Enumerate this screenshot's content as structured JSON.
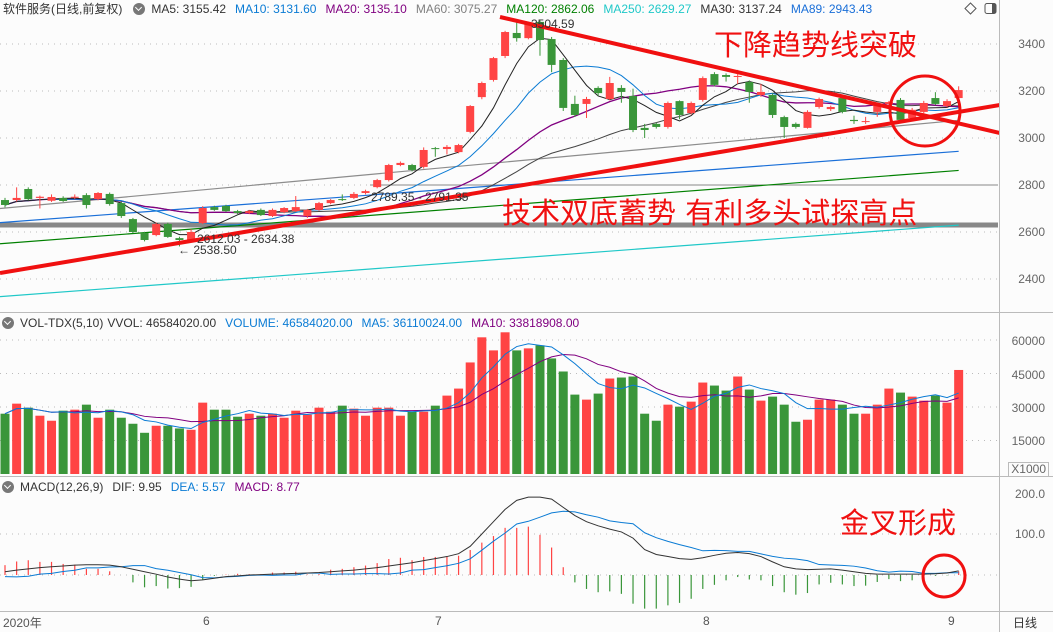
{
  "header": {
    "title": "软件服务(日线,前复权)",
    "ma": [
      {
        "label": "MA5: 3155.42",
        "color": "#333333"
      },
      {
        "label": "MA10: 3131.60",
        "color": "#0a7bd4"
      },
      {
        "label": "MA20: 3135.10",
        "color": "#800080"
      },
      {
        "label": "MA60: 3075.27",
        "color": "#808080"
      },
      {
        "label": "MA120: 2862.06",
        "color": "#008000"
      },
      {
        "label": "MA250: 2629.27",
        "color": "#20c8c8"
      },
      {
        "label": "MA30: 3137.24",
        "color": "#333333"
      },
      {
        "label": "MA89: 2943.43",
        "color": "#1a6fd8"
      }
    ]
  },
  "volume_header": {
    "name": "VOL-TDX(5,10)",
    "vvol": "VVOL: 46584020.00",
    "volume": "VOLUME: 46584020.00",
    "ma5": "MA5: 36110024.00",
    "ma10": "MA10: 33818908.00"
  },
  "macd_header": {
    "name": "MACD(12,26,9)",
    "dif": "DIF: 9.95",
    "dea": "DEA: 5.57",
    "macd": "MACD: 8.77"
  },
  "colors": {
    "up": "#ff4444",
    "down": "#3a963a",
    "annotation": "#f01010"
  },
  "price_axis": [
    "3400",
    "3200",
    "3000",
    "2800",
    "2600",
    "2400"
  ],
  "volume_axis": [
    "60000",
    "45000",
    "30000",
    "15000"
  ],
  "volume_unit": "X1000",
  "macd_axis": [
    "200.0",
    "100.0"
  ],
  "time_axis": {
    "year": "2020年",
    "months": [
      "6",
      "7",
      "8",
      "9"
    ],
    "period": "日线"
  },
  "price_labels": {
    "high": "3504.59",
    "range1": "2789.35 - 2791.35",
    "range2": "2612.03 - 2634.38",
    "low": "← 2538.50"
  },
  "annotations": {
    "breakout": "下降趋势线突破",
    "double_bottom": "技术双底蓄势  有利多头试探高点",
    "golden_cross": "金叉形成"
  },
  "chart_data": {
    "type": "candlestick",
    "price_range": [
      2300,
      3560
    ],
    "candles": [
      [
        2736,
        2745,
        2705,
        2715
      ],
      [
        2736,
        2790,
        2730,
        2745
      ],
      [
        2783,
        2790,
        2735,
        2740
      ],
      [
        2745,
        2755,
        2700,
        2750
      ],
      [
        2733,
        2760,
        2728,
        2749
      ],
      [
        2745,
        2752,
        2728,
        2732
      ],
      [
        2749,
        2760,
        2740,
        2750
      ],
      [
        2757,
        2765,
        2700,
        2715
      ],
      [
        2740,
        2770,
        2735,
        2766
      ],
      [
        2762,
        2768,
        2712,
        2719
      ],
      [
        2723,
        2730,
        2660,
        2668
      ],
      [
        2655,
        2660,
        2595,
        2600
      ],
      [
        2596,
        2600,
        2560,
        2566
      ],
      [
        2587,
        2640,
        2582,
        2634
      ],
      [
        2634,
        2640,
        2575,
        2579
      ],
      [
        2574,
        2580,
        2538.5,
        2566
      ],
      [
        2566,
        2612,
        2560,
        2600
      ],
      [
        2638,
        2710,
        2634,
        2702
      ],
      [
        2706,
        2712,
        2690,
        2694
      ],
      [
        2711,
        2716,
        2685,
        2689
      ],
      [
        2689,
        2694,
        2676,
        2681
      ],
      [
        2681,
        2694,
        2676,
        2689
      ],
      [
        2694,
        2700,
        2668,
        2672
      ],
      [
        2668,
        2700,
        2664,
        2694
      ],
      [
        2685,
        2706,
        2680,
        2702
      ],
      [
        2689,
        2753,
        2685,
        2706
      ],
      [
        2668,
        2698,
        2660,
        2694
      ],
      [
        2694,
        2728,
        2690,
        2723
      ],
      [
        2723,
        2740,
        2718,
        2736
      ],
      [
        2740,
        2760,
        2732,
        2736
      ],
      [
        2745,
        2770,
        2740,
        2762
      ],
      [
        2766,
        2780,
        2760,
        2774
      ],
      [
        2791,
        2826,
        2786,
        2821
      ],
      [
        2821,
        2890,
        2815,
        2885
      ],
      [
        2885,
        2900,
        2880,
        2894
      ],
      [
        2885,
        2890,
        2858,
        2864
      ],
      [
        2877,
        2960,
        2870,
        2949
      ],
      [
        2957,
        2962,
        2920,
        2953
      ],
      [
        2953,
        2970,
        2930,
        2962
      ],
      [
        2940,
        2975,
        2935,
        2970
      ],
      [
        3026,
        3140,
        3020,
        3136
      ],
      [
        3174,
        3240,
        3165,
        3234
      ],
      [
        3247,
        3345,
        3240,
        3340
      ],
      [
        3349,
        3456,
        3340,
        3451
      ],
      [
        3447,
        3504.59,
        3410,
        3425
      ],
      [
        3425,
        3495,
        3420,
        3489
      ],
      [
        3494,
        3500,
        3350,
        3417
      ],
      [
        3421,
        3430,
        3280,
        3311
      ],
      [
        3332,
        3340,
        3115,
        3128
      ],
      [
        3145,
        3180,
        3090,
        3098
      ],
      [
        3145,
        3175,
        3085,
        3166
      ],
      [
        3213,
        3220,
        3180,
        3191
      ],
      [
        3166,
        3260,
        3160,
        3234
      ],
      [
        3213,
        3225,
        3150,
        3196
      ],
      [
        3179,
        3210,
        3025,
        3034
      ],
      [
        3043,
        3060,
        3000,
        3034
      ],
      [
        3060,
        3065,
        3040,
        3047
      ],
      [
        3047,
        3155,
        3040,
        3149
      ],
      [
        3157,
        3160,
        3080,
        3098
      ],
      [
        3106,
        3155,
        3100,
        3149
      ],
      [
        3162,
        3262,
        3155,
        3255
      ],
      [
        3272,
        3280,
        3220,
        3226
      ],
      [
        3268,
        3275,
        3240,
        3260
      ],
      [
        3260,
        3290,
        3230,
        3264
      ],
      [
        3238,
        3245,
        3150,
        3196
      ],
      [
        3183,
        3230,
        3175,
        3196
      ],
      [
        3183,
        3190,
        3085,
        3098
      ],
      [
        3089,
        3095,
        3000,
        3047
      ],
      [
        3060,
        3066,
        3040,
        3047
      ],
      [
        3043,
        3118,
        3040,
        3111
      ],
      [
        3132,
        3172,
        3125,
        3166
      ],
      [
        3123,
        3138,
        3115,
        3132
      ],
      [
        3170,
        3176,
        3105,
        3111
      ],
      [
        3077,
        3095,
        3060,
        3072
      ],
      [
        3068,
        3090,
        3060,
        3072
      ],
      [
        3111,
        3150,
        3090,
        3140
      ],
      [
        3145,
        3158,
        3125,
        3153
      ],
      [
        3162,
        3170,
        3070,
        3077
      ],
      [
        3085,
        3128,
        3080,
        3120
      ],
      [
        3111,
        3158,
        3105,
        3149
      ],
      [
        3170,
        3195,
        3140,
        3145
      ],
      [
        3136,
        3165,
        3130,
        3157
      ],
      [
        3170,
        3220,
        3165,
        3204
      ]
    ],
    "volume": [
      27000,
      31500,
      29700,
      26100,
      23850,
      28350,
      28800,
      31050,
      25200,
      28800,
      25200,
      22500,
      18450,
      21600,
      21600,
      20400,
      19800,
      31950,
      28800,
      28800,
      25650,
      27000,
      26100,
      27000,
      25200,
      28350,
      26550,
      29700,
      27900,
      30600,
      29250,
      26100,
      29700,
      29700,
      26100,
      27900,
      27900,
      30600,
      35100,
      38250,
      49950,
      61200,
      55350,
      63450,
      55350,
      56250,
      57600,
      51750,
      45900,
      35550,
      33300,
      36000,
      42750,
      43200,
      43650,
      27000,
      23850,
      31050,
      30150,
      32400,
      40950,
      39600,
      37350,
      43650,
      37800,
      32850,
      34650,
      31050,
      23400,
      24300,
      33300,
      33300,
      31050,
      27000,
      27000,
      31050,
      38250,
      36450,
      34650,
      32850,
      35100,
      31950,
      46584
    ],
    "macd_hist": [
      24,
      33,
      36,
      32,
      32,
      27,
      25,
      15,
      15,
      9,
      0,
      -18,
      -30,
      -27,
      -33,
      -32,
      -29,
      -11,
      -2,
      1,
      3,
      2,
      2,
      6,
      6,
      8,
      1,
      2,
      13,
      15,
      19,
      23,
      29,
      39,
      42,
      36,
      44,
      44,
      45,
      47,
      61,
      79,
      95,
      115,
      115,
      118,
      98,
      67,
      19,
      -18,
      -34,
      -42,
      -40,
      -46,
      -70,
      -82,
      -82,
      -74,
      -68,
      -58,
      -34,
      -24,
      -13,
      -5,
      -11,
      -13,
      -27,
      -42,
      -48,
      -44,
      -23,
      -19,
      -23,
      -27,
      -26,
      -17,
      -10,
      -15,
      -13,
      -4,
      -2,
      -1,
      8.77
    ],
    "dif": [
      8,
      12,
      15,
      18,
      20,
      22,
      24,
      25,
      25,
      24,
      20,
      14,
      8,
      2,
      -5,
      -10,
      -14,
      -12,
      -8,
      -4,
      -2,
      0,
      1,
      2,
      3,
      4,
      5,
      6,
      8,
      10,
      12,
      15,
      18,
      22,
      26,
      30,
      35,
      40,
      45,
      52,
      70,
      100,
      130,
      160,
      182,
      190,
      190,
      185,
      165,
      145,
      130,
      120,
      112,
      105,
      90,
      62,
      50,
      45,
      40,
      38,
      42,
      48,
      53,
      55,
      52,
      45,
      32,
      20,
      15,
      13,
      14,
      15,
      12,
      8,
      4,
      2,
      2,
      2,
      2,
      2,
      3,
      5,
      9.95
    ],
    "long_ma": [
      {
        "name": "MA60",
        "color": "#8c8c8c",
        "start": 2700,
        "end": 3075.27
      },
      {
        "name": "MA120",
        "color": "#008000",
        "start": 2550,
        "end": 2862.06
      },
      {
        "name": "MA250",
        "color": "#20c8c8",
        "start": 2325,
        "end": 2629.27
      },
      {
        "name": "MA89",
        "color": "#1a6fd8",
        "start": 2640,
        "end": 2943.43
      }
    ],
    "reference_level": 2630
  }
}
